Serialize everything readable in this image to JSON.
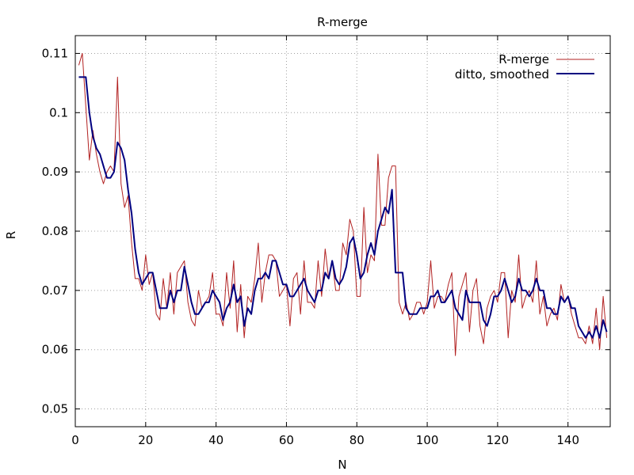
{
  "chart_data": {
    "type": "line",
    "title": "R-merge",
    "xlabel": "N",
    "ylabel": "R",
    "xlim": [
      0,
      152
    ],
    "ylim": [
      0.047,
      0.113
    ],
    "x_ticks": [
      0,
      20,
      40,
      60,
      80,
      100,
      120,
      140
    ],
    "y_ticks": [
      0.05,
      0.06,
      0.07,
      0.08,
      0.09,
      0.1,
      0.11
    ],
    "x_tick_labels": [
      "0",
      "20",
      "40",
      "60",
      "80",
      "100",
      "120",
      "140"
    ],
    "y_tick_labels": [
      "0.05",
      "0.06",
      "0.07",
      "0.08",
      "0.09",
      "0.1",
      "0.11"
    ],
    "grid": true,
    "legend_position": "top-right",
    "x": [
      1,
      2,
      3,
      4,
      5,
      6,
      7,
      8,
      9,
      10,
      11,
      12,
      13,
      14,
      15,
      16,
      17,
      18,
      19,
      20,
      21,
      22,
      23,
      24,
      25,
      26,
      27,
      28,
      29,
      30,
      31,
      32,
      33,
      34,
      35,
      36,
      37,
      38,
      39,
      40,
      41,
      42,
      43,
      44,
      45,
      46,
      47,
      48,
      49,
      50,
      51,
      52,
      53,
      54,
      55,
      56,
      57,
      58,
      59,
      60,
      61,
      62,
      63,
      64,
      65,
      66,
      67,
      68,
      69,
      70,
      71,
      72,
      73,
      74,
      75,
      76,
      77,
      78,
      79,
      80,
      81,
      82,
      83,
      84,
      85,
      86,
      87,
      88,
      89,
      90,
      91,
      92,
      93,
      94,
      95,
      96,
      97,
      98,
      99,
      100,
      101,
      102,
      103,
      104,
      105,
      106,
      107,
      108,
      109,
      110,
      111,
      112,
      113,
      114,
      115,
      116,
      117,
      118,
      119,
      120,
      121,
      122,
      123,
      124,
      125,
      126,
      127,
      128,
      129,
      130,
      131,
      132,
      133,
      134,
      135,
      136,
      137,
      138,
      139,
      140,
      141,
      142,
      143,
      144,
      145,
      146,
      147,
      148,
      149,
      150,
      151
    ],
    "series": [
      {
        "name": "R-merge",
        "color": "#b22222",
        "line_width": 1,
        "values": [
          0.108,
          0.11,
          0.101,
          0.092,
          0.097,
          0.093,
          0.09,
          0.088,
          0.09,
          0.091,
          0.09,
          0.106,
          0.088,
          0.084,
          0.086,
          0.078,
          0.072,
          0.072,
          0.07,
          0.076,
          0.071,
          0.073,
          0.066,
          0.065,
          0.072,
          0.067,
          0.073,
          0.066,
          0.073,
          0.074,
          0.075,
          0.068,
          0.065,
          0.064,
          0.07,
          0.067,
          0.068,
          0.069,
          0.073,
          0.066,
          0.066,
          0.064,
          0.073,
          0.067,
          0.075,
          0.063,
          0.071,
          0.062,
          0.069,
          0.068,
          0.072,
          0.078,
          0.068,
          0.073,
          0.076,
          0.076,
          0.075,
          0.069,
          0.07,
          0.071,
          0.064,
          0.072,
          0.073,
          0.066,
          0.075,
          0.068,
          0.068,
          0.067,
          0.075,
          0.069,
          0.077,
          0.072,
          0.075,
          0.07,
          0.07,
          0.078,
          0.076,
          0.082,
          0.08,
          0.069,
          0.069,
          0.084,
          0.073,
          0.076,
          0.075,
          0.093,
          0.081,
          0.081,
          0.089,
          0.091,
          0.091,
          0.068,
          0.066,
          0.068,
          0.065,
          0.066,
          0.068,
          0.068,
          0.066,
          0.068,
          0.075,
          0.067,
          0.069,
          0.069,
          0.068,
          0.071,
          0.073,
          0.059,
          0.069,
          0.071,
          0.073,
          0.063,
          0.07,
          0.072,
          0.064,
          0.061,
          0.067,
          0.069,
          0.07,
          0.068,
          0.073,
          0.073,
          0.062,
          0.07,
          0.068,
          0.076,
          0.067,
          0.069,
          0.07,
          0.068,
          0.075,
          0.066,
          0.069,
          0.064,
          0.066,
          0.067,
          0.065,
          0.071,
          0.068,
          0.069,
          0.066,
          0.064,
          0.062,
          0.062,
          0.061,
          0.064,
          0.061,
          0.067,
          0.06,
          0.069,
          0.062
        ]
      },
      {
        "name": "ditto, smoothed",
        "color": "#000080",
        "line_width": 2,
        "values": [
          0.106,
          0.106,
          0.106,
          0.1,
          0.096,
          0.094,
          0.093,
          0.091,
          0.089,
          0.089,
          0.09,
          0.095,
          0.094,
          0.092,
          0.087,
          0.083,
          0.077,
          0.073,
          0.071,
          0.072,
          0.073,
          0.073,
          0.07,
          0.067,
          0.067,
          0.067,
          0.07,
          0.068,
          0.07,
          0.07,
          0.074,
          0.071,
          0.068,
          0.066,
          0.066,
          0.067,
          0.068,
          0.068,
          0.07,
          0.069,
          0.068,
          0.065,
          0.067,
          0.068,
          0.071,
          0.068,
          0.069,
          0.064,
          0.067,
          0.066,
          0.07,
          0.072,
          0.072,
          0.073,
          0.072,
          0.075,
          0.075,
          0.073,
          0.071,
          0.071,
          0.069,
          0.069,
          0.07,
          0.071,
          0.072,
          0.07,
          0.069,
          0.068,
          0.07,
          0.07,
          0.073,
          0.072,
          0.075,
          0.072,
          0.071,
          0.072,
          0.074,
          0.078,
          0.079,
          0.076,
          0.072,
          0.073,
          0.076,
          0.078,
          0.076,
          0.08,
          0.082,
          0.084,
          0.083,
          0.087,
          0.073,
          0.073,
          0.073,
          0.067,
          0.066,
          0.066,
          0.066,
          0.067,
          0.067,
          0.067,
          0.069,
          0.069,
          0.07,
          0.068,
          0.068,
          0.069,
          0.07,
          0.067,
          0.066,
          0.065,
          0.07,
          0.068,
          0.068,
          0.068,
          0.068,
          0.065,
          0.064,
          0.066,
          0.069,
          0.069,
          0.07,
          0.072,
          0.07,
          0.068,
          0.069,
          0.072,
          0.07,
          0.07,
          0.069,
          0.07,
          0.072,
          0.07,
          0.07,
          0.067,
          0.067,
          0.066,
          0.066,
          0.069,
          0.068,
          0.069,
          0.067,
          0.067,
          0.064,
          0.063,
          0.062,
          0.063,
          0.062,
          0.064,
          0.062,
          0.065,
          0.063
        ]
      }
    ]
  }
}
